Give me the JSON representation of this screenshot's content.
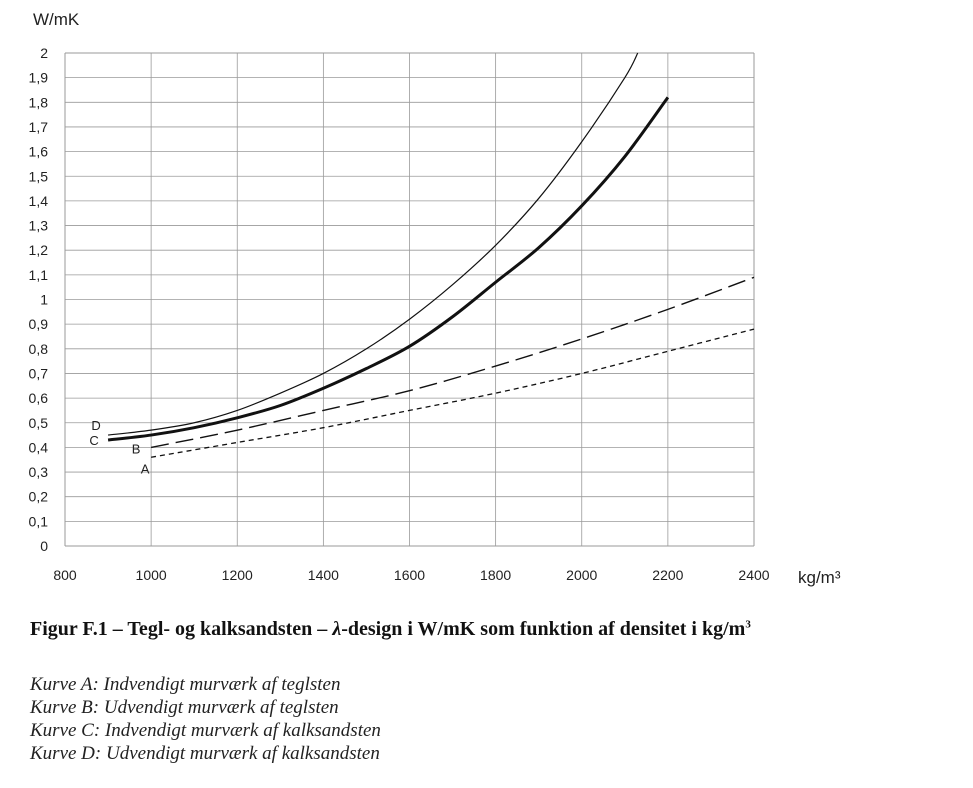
{
  "chart_data": {
    "type": "line",
    "ylabel": "W/mK",
    "xlabel": "kg/m³",
    "xlim": [
      800,
      2400
    ],
    "ylim": [
      0,
      2
    ],
    "x_ticks": [
      "800",
      "1000",
      "1200",
      "1400",
      "1600",
      "1800",
      "2000",
      "2200",
      "2400"
    ],
    "y_ticks": [
      "0",
      "0,1",
      "0,2",
      "0,3",
      "0,4",
      "0,5",
      "0,6",
      "0,7",
      "0,8",
      "0,9",
      "1",
      "1,1",
      "1,2",
      "1,3",
      "1,4",
      "1,5",
      "1,6",
      "1,7",
      "1,8",
      "1,9",
      "2"
    ],
    "grid": true,
    "series": [
      {
        "name": "A",
        "style": "short-dash",
        "x": [
          1000,
          1200,
          1400,
          1600,
          1800,
          2000,
          2200,
          2400
        ],
        "y": [
          0.36,
          0.42,
          0.48,
          0.55,
          0.62,
          0.7,
          0.79,
          0.88
        ]
      },
      {
        "name": "B",
        "style": "long-dash",
        "x": [
          1000,
          1200,
          1400,
          1600,
          1800,
          2000,
          2200,
          2400
        ],
        "y": [
          0.4,
          0.47,
          0.55,
          0.63,
          0.73,
          0.84,
          0.96,
          1.09
        ]
      },
      {
        "name": "C",
        "style": "thick",
        "x": [
          900,
          1000,
          1100,
          1200,
          1300,
          1400,
          1500,
          1600,
          1700,
          1800,
          1900,
          2000,
          2100,
          2200
        ],
        "y": [
          0.43,
          0.45,
          0.48,
          0.52,
          0.57,
          0.64,
          0.72,
          0.81,
          0.93,
          1.07,
          1.21,
          1.38,
          1.58,
          1.82
        ]
      },
      {
        "name": "D",
        "style": "thin",
        "x": [
          900,
          1000,
          1100,
          1200,
          1300,
          1400,
          1500,
          1600,
          1700,
          1800,
          1900,
          2000,
          2100,
          2130
        ],
        "y": [
          0.45,
          0.47,
          0.5,
          0.55,
          0.62,
          0.7,
          0.8,
          0.92,
          1.06,
          1.22,
          1.41,
          1.64,
          1.9,
          2.0
        ]
      }
    ]
  },
  "caption": {
    "prefix": "Figur F.1 – Tegl- og kalksandsten – ",
    "lambda": "λ",
    "rest": "-design i W/mK som funktion af densitet i kg/m",
    "sup": "3"
  },
  "legend": [
    "Kurve A: Indvendigt murværk af teglsten",
    "Kurve B: Udvendigt murværk af teglsten",
    "Kurve C: Indvendigt murværk af kalksandsten",
    "Kurve D: Udvendigt murværk af kalksandsten"
  ],
  "colors": {
    "line": "#111111",
    "grid": "#9a9a9a"
  }
}
